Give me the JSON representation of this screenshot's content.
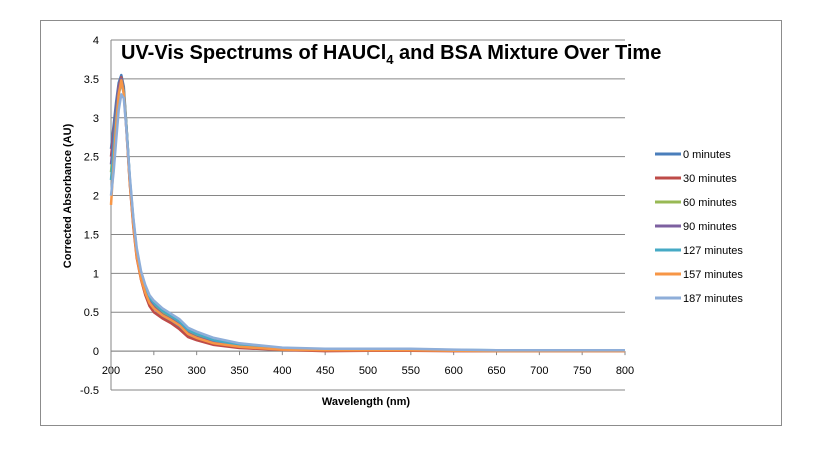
{
  "chart_data": {
    "type": "line",
    "title": "UV-Vis Spectrums of HAUCl",
    "title_subscript": "4",
    "title_suffix": " and BSA Mixture Over Time",
    "xlabel": "Wavelength (nm)",
    "ylabel": "Corrected Absorbance (AU)",
    "xlim": [
      200,
      800
    ],
    "ylim": [
      -0.5,
      4
    ],
    "x_ticks": [
      "200",
      "250",
      "300",
      "350",
      "400",
      "450",
      "500",
      "550",
      "600",
      "650",
      "700",
      "750",
      "800"
    ],
    "y_ticks": [
      "-0.5",
      "0",
      "0.5",
      "1",
      "1.5",
      "2",
      "2.5",
      "3",
      "3.5",
      "4"
    ],
    "grid": "horizontal",
    "legend_position": "right",
    "x": [
      200,
      203,
      206,
      209,
      212,
      215,
      218,
      222,
      226,
      230,
      235,
      240,
      245,
      250,
      260,
      270,
      280,
      290,
      300,
      320,
      350,
      400,
      450,
      500,
      550,
      600,
      650,
      700,
      750,
      800
    ],
    "series": [
      {
        "name": "0 minutes",
        "color": "#4a7ebb",
        "values": [
          2.6,
          2.9,
          3.2,
          3.45,
          3.55,
          3.4,
          2.9,
          2.2,
          1.65,
          1.25,
          0.95,
          0.76,
          0.62,
          0.55,
          0.45,
          0.38,
          0.3,
          0.2,
          0.16,
          0.1,
          0.05,
          0.02,
          0.01,
          0.01,
          0.01,
          0.005,
          0.0,
          0.0,
          0.0,
          0.0
        ]
      },
      {
        "name": "30 minutes",
        "color": "#be4b48",
        "values": [
          2.5,
          2.8,
          3.1,
          3.4,
          3.52,
          3.35,
          2.85,
          2.15,
          1.6,
          1.2,
          0.92,
          0.72,
          0.58,
          0.5,
          0.42,
          0.36,
          0.28,
          0.18,
          0.14,
          0.08,
          0.04,
          0.015,
          0.0,
          0.005,
          0.005,
          0.0,
          0.0,
          0.0,
          0.0,
          0.0
        ]
      },
      {
        "name": "60 minutes",
        "color": "#98b954",
        "values": [
          2.3,
          2.7,
          3.05,
          3.35,
          3.5,
          3.35,
          2.9,
          2.2,
          1.68,
          1.28,
          0.98,
          0.8,
          0.67,
          0.6,
          0.5,
          0.43,
          0.36,
          0.25,
          0.2,
          0.13,
          0.07,
          0.03,
          0.02,
          0.02,
          0.02,
          0.01,
          0.005,
          0.005,
          0.005,
          0.005
        ]
      },
      {
        "name": "90 minutes",
        "color": "#7d60a0",
        "values": [
          2.4,
          2.75,
          3.1,
          3.38,
          3.5,
          3.33,
          2.88,
          2.18,
          1.64,
          1.24,
          0.95,
          0.77,
          0.64,
          0.57,
          0.47,
          0.41,
          0.34,
          0.23,
          0.18,
          0.11,
          0.06,
          0.025,
          0.015,
          0.015,
          0.015,
          0.01,
          0.005,
          0.0,
          0.0,
          0.0
        ]
      },
      {
        "name": "127 minutes",
        "color": "#46aac5",
        "values": [
          2.2,
          2.6,
          3.0,
          3.3,
          3.45,
          3.32,
          2.9,
          2.22,
          1.7,
          1.3,
          1.0,
          0.82,
          0.69,
          0.62,
          0.52,
          0.45,
          0.38,
          0.27,
          0.22,
          0.14,
          0.08,
          0.035,
          0.025,
          0.025,
          0.025,
          0.015,
          0.01,
          0.005,
          0.005,
          0.005
        ]
      },
      {
        "name": "157 minutes",
        "color": "#f79646",
        "values": [
          1.88,
          2.4,
          2.9,
          3.3,
          3.48,
          3.3,
          2.85,
          2.16,
          1.62,
          1.22,
          0.93,
          0.75,
          0.62,
          0.55,
          0.46,
          0.4,
          0.33,
          0.22,
          0.17,
          0.1,
          0.055,
          0.02,
          0.01,
          0.01,
          0.01,
          0.005,
          0.0,
          0.0,
          0.0,
          0.0
        ]
      },
      {
        "name": "187 minutes",
        "color": "#8eaed9",
        "values": [
          2.0,
          2.3,
          2.7,
          3.1,
          3.3,
          3.25,
          2.85,
          2.25,
          1.72,
          1.33,
          1.03,
          0.85,
          0.72,
          0.65,
          0.55,
          0.48,
          0.41,
          0.3,
          0.25,
          0.17,
          0.1,
          0.045,
          0.03,
          0.03,
          0.03,
          0.02,
          0.01,
          0.01,
          0.01,
          0.01
        ]
      }
    ]
  }
}
